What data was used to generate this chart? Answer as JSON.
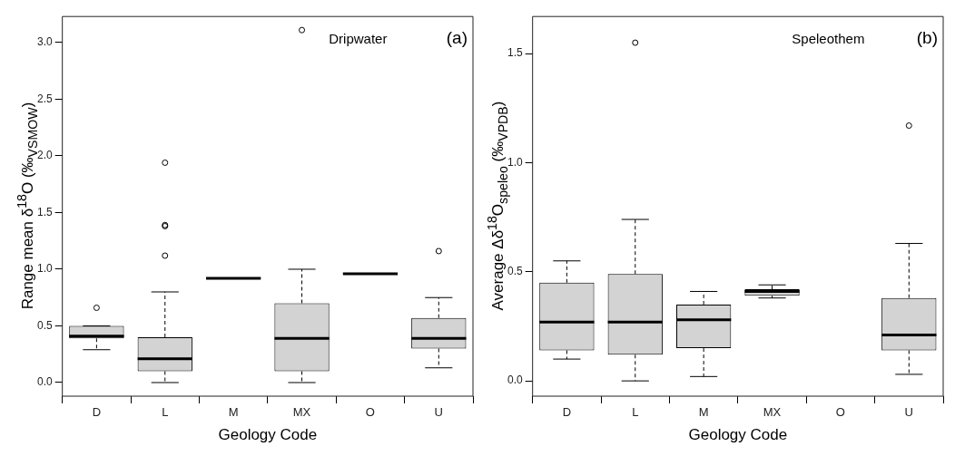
{
  "chart_data": [
    {
      "type": "box",
      "xlabel": "Geology Code",
      "ylabel": "Range mean δ$^{18}$O (‰$_{VSMOW}$)",
      "categories": [
        "D",
        "L",
        "M",
        "MX",
        "O",
        "U"
      ],
      "ylim": [
        -0.12,
        3.23
      ],
      "yticks": [
        {
          "value": 0,
          "label": "0.0"
        },
        0.5,
        {
          "value": 1,
          "label": "1.0"
        },
        1.5,
        {
          "value": 2,
          "label": "2.0"
        },
        2.5,
        {
          "value": 3,
          "label": "3.0"
        }
      ],
      "grid": false,
      "legend": false,
      "annotations": [
        "Dripwater",
        "(a)"
      ],
      "boxes": [
        {
          "low": 0.29,
          "q1": 0.39,
          "median": 0.41,
          "q3": 0.5,
          "high": 0.5,
          "outliers": [
            0.66
          ]
        },
        {
          "low": 0,
          "q1": 0.1,
          "median": 0.21,
          "q3": 0.4,
          "high": 0.8,
          "outliers": [
            1.12,
            1.38,
            1.39,
            1.94
          ]
        },
        {
          "low": 0.92,
          "q1": 0.92,
          "median": 0.92,
          "q3": 0.92,
          "high": 0.92
        },
        {
          "low": 0,
          "q1": 0.1,
          "median": 0.39,
          "q3": 0.7,
          "high": 1.0,
          "outliers": [
            3.11
          ]
        },
        {
          "low": 0.96,
          "q1": 0.96,
          "median": 0.96,
          "q3": 0.96,
          "high": 0.96
        },
        {
          "low": 0.13,
          "q1": 0.3,
          "median": 0.39,
          "q3": 0.57,
          "high": 0.75,
          "outliers": [
            1.16
          ]
        }
      ]
    },
    {
      "type": "box",
      "xlabel": "Geology Code",
      "ylabel": "Average Δδ$^{18}$O$_{speleo}$ (‰$_{VPDB}$)",
      "categories": [
        "D",
        "L",
        "M",
        "MX",
        "O",
        "U"
      ],
      "ylim": [
        -0.07,
        1.67
      ],
      "yticks": [
        {
          "value": 0,
          "label": "0.0"
        },
        0.5,
        {
          "value": 1,
          "label": "1.0"
        },
        1.5
      ],
      "grid": false,
      "legend": false,
      "annotations": [
        "Speleothem",
        "(b)"
      ],
      "boxes": [
        {
          "low": 0.1,
          "q1": 0.14,
          "median": 0.27,
          "q3": 0.45,
          "high": 0.55
        },
        {
          "low": 0,
          "q1": 0.12,
          "median": 0.27,
          "q3": 0.49,
          "high": 0.74,
          "outliers": [
            1.55
          ]
        },
        {
          "low": 0.02,
          "q1": 0.15,
          "median": 0.28,
          "q3": 0.35,
          "high": 0.41
        },
        {
          "low": 0.38,
          "q1": 0.39,
          "median": 0.41,
          "q3": 0.42,
          "high": 0.44
        },
        null,
        {
          "low": 0.03,
          "q1": 0.14,
          "median": 0.21,
          "q3": 0.38,
          "high": 0.63,
          "outliers": [
            1.17
          ]
        }
      ]
    }
  ]
}
